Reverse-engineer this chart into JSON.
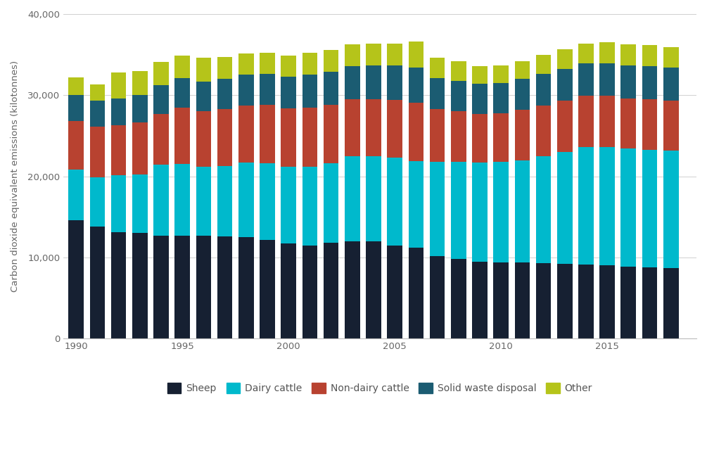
{
  "years": [
    1990,
    1991,
    1992,
    1993,
    1994,
    1995,
    1996,
    1997,
    1998,
    1999,
    2000,
    2001,
    2002,
    2003,
    2004,
    2005,
    2006,
    2007,
    2008,
    2009,
    2010,
    2011,
    2012,
    2013,
    2014,
    2015,
    2016,
    2017,
    2018
  ],
  "sheep": [
    14600,
    13800,
    13100,
    13000,
    12700,
    12700,
    12700,
    12600,
    12500,
    12200,
    11700,
    11500,
    11800,
    12000,
    12000,
    11500,
    11200,
    10200,
    9800,
    9500,
    9400,
    9400,
    9300,
    9200,
    9100,
    9000,
    8900,
    8800,
    8700
  ],
  "dairy_cattle": [
    6200,
    6100,
    7000,
    7200,
    8700,
    8800,
    8500,
    8700,
    9200,
    9400,
    9500,
    9700,
    9800,
    10500,
    10500,
    10800,
    10700,
    11600,
    12000,
    12200,
    12400,
    12600,
    13200,
    13800,
    14500,
    14600,
    14500,
    14500,
    14500
  ],
  "non_dairy_cattle": [
    6000,
    6200,
    6200,
    6400,
    6300,
    7000,
    6800,
    7000,
    7000,
    7200,
    7200,
    7300,
    7200,
    7000,
    7000,
    7100,
    7200,
    6500,
    6200,
    6000,
    6000,
    6200,
    6200,
    6300,
    6300,
    6300,
    6200,
    6200,
    6100
  ],
  "solid_waste": [
    3200,
    3200,
    3300,
    3400,
    3500,
    3600,
    3700,
    3700,
    3800,
    3800,
    3900,
    4000,
    4100,
    4100,
    4200,
    4300,
    4300,
    3800,
    3800,
    3700,
    3700,
    3800,
    3900,
    3900,
    4000,
    4000,
    4100,
    4100,
    4100
  ],
  "other": [
    2200,
    2000,
    3200,
    3000,
    2900,
    2800,
    2900,
    2700,
    2600,
    2600,
    2600,
    2700,
    2700,
    2700,
    2700,
    2700,
    3200,
    2500,
    2400,
    2200,
    2200,
    2200,
    2400,
    2500,
    2500,
    2600,
    2600,
    2600,
    2500
  ],
  "colors": {
    "sheep": "#162032",
    "dairy_cattle": "#00b9cc",
    "non_dairy_cattle": "#b84230",
    "solid_waste": "#1b5c72",
    "other": "#b5c41a"
  },
  "ylabel": "Carbon dioxide equivalent emissions (kilotonnes)",
  "ylim": [
    0,
    40000
  ],
  "yticks": [
    0,
    10000,
    20000,
    30000,
    40000
  ],
  "ytick_labels": [
    "0",
    "10,000",
    "20,000",
    "30,000",
    "40,000"
  ],
  "legend_labels": [
    "Sheep",
    "Dairy cattle",
    "Non-dairy cattle",
    "Solid waste disposal",
    "Other"
  ],
  "bg_color": "#ffffff",
  "grid_color": "#d0d0d0"
}
